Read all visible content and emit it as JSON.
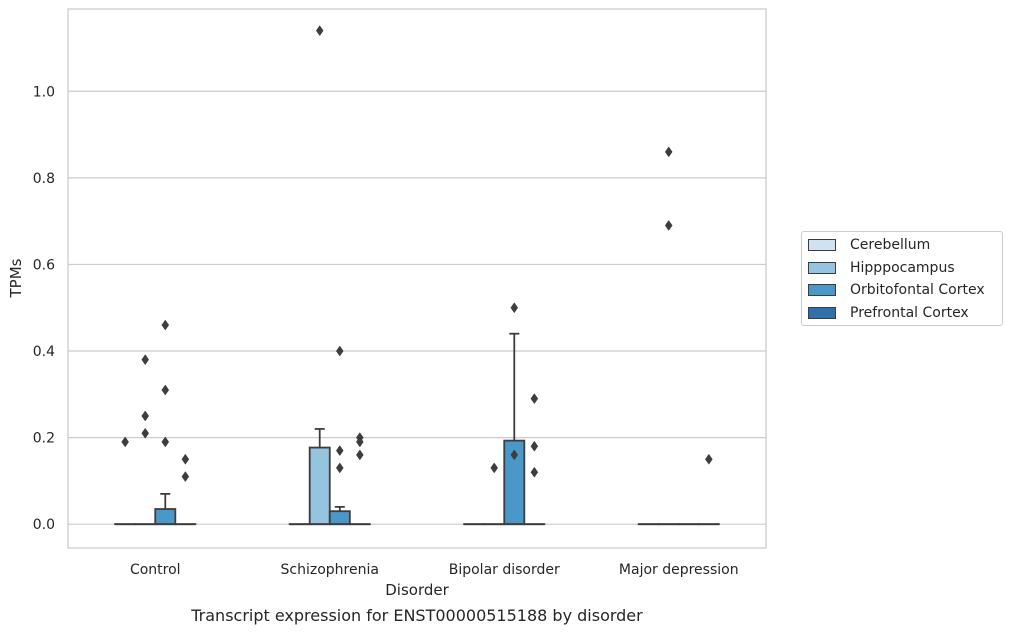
{
  "chart_data": {
    "type": "box",
    "title": "Transcript expression for ENST00000515188 by disorder",
    "xlabel": "Disorder",
    "ylabel": "TPMs",
    "ylim": [
      -0.055,
      1.19
    ],
    "yticks": [
      0.0,
      0.2,
      0.4,
      0.6,
      0.8,
      1.0
    ],
    "ytick_labels": [
      "0.0",
      "0.2",
      "0.4",
      "0.6",
      "0.8",
      "1.0"
    ],
    "grid": "horizontal",
    "legend_position": "center-right",
    "categories": [
      "Control",
      "Schizophrenia",
      "Bipolar disorder",
      "Major depression"
    ],
    "series": [
      {
        "name": "Cerebellum",
        "color": "#d0e1f2",
        "boxes": [
          {
            "q1": 0,
            "median": 0,
            "q3": 0,
            "whisker_low": 0,
            "whisker_high": 0,
            "outliers": [
              0.19
            ]
          },
          {
            "q1": 0,
            "median": 0,
            "q3": 0,
            "whisker_low": 0,
            "whisker_high": 0,
            "outliers": []
          },
          {
            "q1": 0,
            "median": 0,
            "q3": 0,
            "whisker_low": 0,
            "whisker_high": 0,
            "outliers": []
          },
          {
            "q1": 0,
            "median": 0,
            "q3": 0,
            "whisker_low": 0,
            "whisker_high": 0,
            "outliers": []
          }
        ]
      },
      {
        "name": "Hipppocampus",
        "color": "#94c4df",
        "boxes": [
          {
            "q1": 0,
            "median": 0,
            "q3": 0,
            "whisker_low": 0,
            "whisker_high": 0,
            "outliers": [
              0.38,
              0.25,
              0.21
            ]
          },
          {
            "q1": 0,
            "median": 0,
            "q3": 0.177,
            "whisker_low": 0,
            "whisker_high": 0.22,
            "outliers": [
              1.14
            ]
          },
          {
            "q1": 0,
            "median": 0,
            "q3": 0,
            "whisker_low": 0,
            "whisker_high": 0,
            "outliers": [
              0.13
            ]
          },
          {
            "q1": 0,
            "median": 0,
            "q3": 0,
            "whisker_low": 0,
            "whisker_high": 0,
            "outliers": [
              0.86,
              0.69
            ]
          }
        ]
      },
      {
        "name": "Orbitofontal Cortex",
        "color": "#4a98c9",
        "boxes": [
          {
            "q1": 0,
            "median": 0,
            "q3": 0.035,
            "whisker_low": 0,
            "whisker_high": 0.07,
            "outliers": [
              0.46,
              0.31,
              0.19
            ]
          },
          {
            "q1": 0,
            "median": 0,
            "q3": 0.03,
            "whisker_low": 0,
            "whisker_high": 0.04,
            "outliers": [
              0.4,
              0.17,
              0.13
            ]
          },
          {
            "q1": 0,
            "median": 0,
            "q3": 0.193,
            "whisker_low": 0,
            "whisker_high": 0.44,
            "outliers": [
              0.5,
              0.16
            ]
          },
          {
            "q1": 0,
            "median": 0,
            "q3": 0,
            "whisker_low": 0,
            "whisker_high": 0,
            "outliers": []
          }
        ]
      },
      {
        "name": "Prefrontal Cortex",
        "color": "#2e6fae",
        "boxes": [
          {
            "q1": 0,
            "median": 0,
            "q3": 0,
            "whisker_low": 0,
            "whisker_high": 0,
            "outliers": [
              0.15,
              0.11
            ]
          },
          {
            "q1": 0,
            "median": 0,
            "q3": 0,
            "whisker_low": 0,
            "whisker_high": 0,
            "outliers": [
              0.2,
              0.19,
              0.16
            ]
          },
          {
            "q1": 0,
            "median": 0,
            "q3": 0,
            "whisker_low": 0,
            "whisker_high": 0,
            "outliers": [
              0.29,
              0.18,
              0.12
            ]
          },
          {
            "q1": 0,
            "median": 0,
            "q3": 0,
            "whisker_low": 0,
            "whisker_high": 0,
            "outliers": [
              0.15
            ]
          }
        ]
      }
    ]
  }
}
